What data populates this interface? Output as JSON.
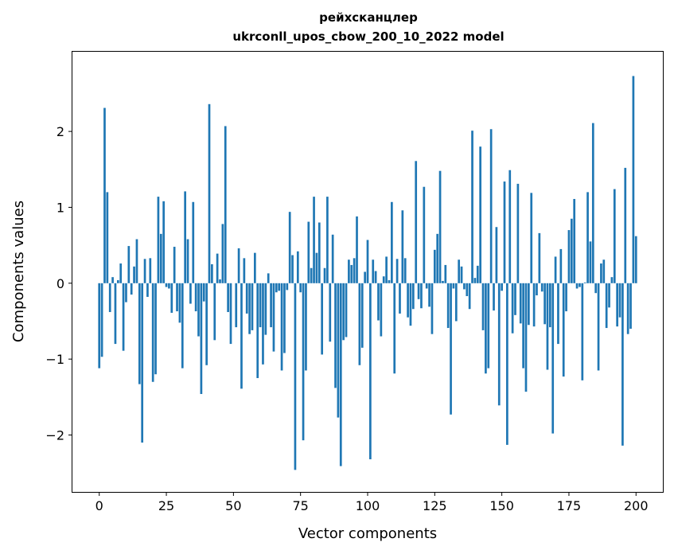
{
  "chart_data": {
    "type": "bar",
    "title": "рейхсканцлер",
    "subtitle": "ukrconll_upos_cbow_200_10_2022 model",
    "xlabel": "Vector components",
    "ylabel": "Components values",
    "xlim": [
      -10,
      210
    ],
    "ylim": [
      -2.75,
      3.05
    ],
    "xticks": [
      0,
      25,
      50,
      75,
      100,
      125,
      150,
      175,
      200
    ],
    "xtick_labels": [
      "0",
      "25",
      "50",
      "75",
      "100",
      "125",
      "150",
      "175",
      "200"
    ],
    "yticks": [
      -2,
      -1,
      0,
      1,
      2
    ],
    "ytick_labels": [
      "−2",
      "−1",
      "0",
      "1",
      "2"
    ],
    "bar_color": "#1f77b4",
    "grid": false,
    "values": [
      -1.12,
      -0.97,
      2.31,
      1.2,
      -0.38,
      0.08,
      -0.8,
      0.04,
      0.26,
      -0.89,
      -0.25,
      0.49,
      -0.15,
      0.22,
      0.58,
      -1.33,
      -2.1,
      0.32,
      -0.18,
      0.33,
      -1.3,
      -1.2,
      1.14,
      0.65,
      1.08,
      -0.05,
      -0.07,
      -0.39,
      0.48,
      -0.37,
      -0.52,
      -1.12,
      1.21,
      0.58,
      -0.27,
      1.07,
      -0.37,
      -0.7,
      -1.46,
      -0.24,
      -1.08,
      2.36,
      0.25,
      -0.75,
      0.39,
      0.05,
      0.78,
      2.07,
      -0.38,
      -0.8,
      0.0,
      -0.58,
      0.46,
      -1.39,
      0.33,
      -0.4,
      -0.67,
      -0.62,
      0.4,
      -1.25,
      -0.58,
      -1.07,
      -0.68,
      0.13,
      -0.58,
      -0.9,
      -0.12,
      -0.1,
      -1.15,
      -0.92,
      -0.09,
      0.94,
      0.37,
      -2.46,
      0.42,
      -0.12,
      -2.07,
      -1.15,
      0.81,
      0.2,
      1.14,
      0.4,
      0.8,
      -0.94,
      0.2,
      1.14,
      -0.77,
      0.64,
      -1.38,
      -1.77,
      -2.41,
      -0.75,
      -0.71,
      0.31,
      0.24,
      0.33,
      0.88,
      -1.08,
      -0.85,
      0.15,
      0.57,
      -2.32,
      0.31,
      0.16,
      -0.49,
      -0.7,
      0.09,
      0.35,
      0.04,
      1.07,
      -1.19,
      0.32,
      -0.4,
      0.96,
      0.33,
      -0.45,
      -0.56,
      -0.34,
      1.61,
      -0.21,
      -0.33,
      1.27,
      -0.07,
      -0.31,
      -0.67,
      0.44,
      0.65,
      1.48,
      0.03,
      0.24,
      -0.59,
      -1.73,
      -0.07,
      -0.5,
      0.31,
      0.22,
      -0.08,
      -0.17,
      -0.34,
      2.01,
      0.07,
      0.23,
      1.8,
      -0.62,
      -1.19,
      -1.12,
      2.03,
      -0.36,
      0.74,
      -1.61,
      -0.1,
      1.34,
      -2.13,
      1.49,
      -0.66,
      -0.42,
      1.31,
      -0.53,
      -1.12,
      -1.43,
      -0.55,
      1.19,
      -0.57,
      -0.16,
      0.66,
      -0.11,
      -0.54,
      -1.14,
      -0.58,
      -1.98,
      0.35,
      -0.8,
      0.45,
      -1.23,
      -0.37,
      0.7,
      0.85,
      1.11,
      -0.07,
      -0.05,
      -1.28,
      0.01,
      1.2,
      0.55,
      2.11,
      -0.13,
      -1.15,
      0.26,
      0.31,
      -0.59,
      -0.32,
      0.08,
      1.24,
      -0.57,
      -0.45,
      -2.14,
      1.52,
      -0.67,
      -0.6,
      2.73,
      0.62
    ]
  }
}
